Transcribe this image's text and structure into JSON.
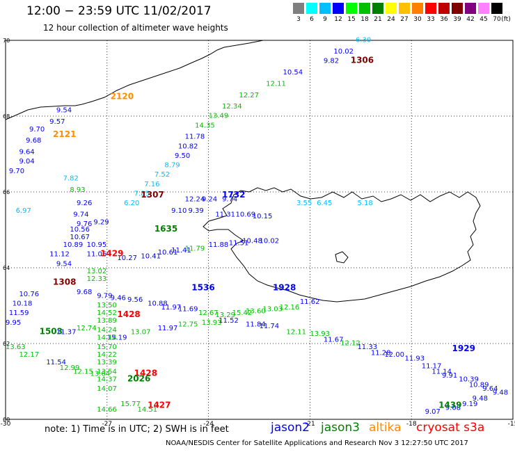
{
  "header": {
    "title": "12:00 − 23:59 UTC 11/02/2017",
    "subtitle": "12 hour collection of altimeter wave heights"
  },
  "colorbar": {
    "colors": [
      "#7f7f7f",
      "#00ffff",
      "#00bfff",
      "#0000ff",
      "#00ff00",
      "#00c000",
      "#008000",
      "#ffff00",
      "#ffc000",
      "#ff8000",
      "#ff0000",
      "#c00000",
      "#800000",
      "#800080",
      "#ff80ff",
      "#000000"
    ],
    "labels": [
      "3",
      "6",
      "9",
      "12",
      "15",
      "18",
      "21",
      "24",
      "27",
      "30",
      "33",
      "36",
      "39",
      "42",
      "45",
      "70"
    ],
    "unit": "(ft)"
  },
  "axes": {
    "x_ticks": [
      "-30",
      "-27",
      "-24",
      "-21",
      "-18",
      "-15"
    ],
    "y_ticks": [
      "70",
      "68",
      "66",
      "64",
      "62",
      "60"
    ],
    "lon_range": [
      -30,
      -15
    ],
    "lat_range": [
      60,
      70
    ]
  },
  "track_labels": [
    {
      "text": "1306",
      "lon": -19.8,
      "lat": 69.4,
      "color": "#800000"
    },
    {
      "text": "2120",
      "lon": -26.9,
      "lat": 68.45,
      "color": "#ff8c00"
    },
    {
      "text": "2121",
      "lon": -28.6,
      "lat": 67.45,
      "color": "#ff8c00"
    },
    {
      "text": "1307",
      "lon": -26.0,
      "lat": 65.85,
      "color": "#800000"
    },
    {
      "text": "1732",
      "lon": -23.6,
      "lat": 65.85,
      "color": "#0000ff"
    },
    {
      "text": "1635",
      "lon": -25.6,
      "lat": 64.95,
      "color": "#008000"
    },
    {
      "text": "1429",
      "lon": -27.2,
      "lat": 64.3,
      "color": "#ff0000"
    },
    {
      "text": "1308",
      "lon": -28.6,
      "lat": 63.55,
      "color": "#800000"
    },
    {
      "text": "1536",
      "lon": -24.5,
      "lat": 63.4,
      "color": "#0000ff"
    },
    {
      "text": "1928",
      "lon": -22.1,
      "lat": 63.4,
      "color": "#0000ff"
    },
    {
      "text": "1428",
      "lon": -26.7,
      "lat": 62.7,
      "color": "#ff0000"
    },
    {
      "text": "1503",
      "lon": -29.0,
      "lat": 62.25,
      "color": "#008000"
    },
    {
      "text": "1929",
      "lon": -16.8,
      "lat": 61.8,
      "color": "#0000ff"
    },
    {
      "text": "1428",
      "lon": -26.2,
      "lat": 61.15,
      "color": "#ff0000"
    },
    {
      "text": "2026",
      "lon": -26.4,
      "lat": 61.0,
      "color": "#008000"
    },
    {
      "text": "1427",
      "lon": -25.8,
      "lat": 60.3,
      "color": "#ff0000"
    },
    {
      "text": "1439",
      "lon": -17.2,
      "lat": 60.3,
      "color": "#008000"
    }
  ],
  "wave_heights": [
    {
      "text": "6.30",
      "lon": -19.65,
      "lat": 69.95,
      "color": "#00bfff"
    },
    {
      "text": "10.02",
      "lon": -20.3,
      "lat": 69.65,
      "color": "#0000ff"
    },
    {
      "text": "9.82",
      "lon": -20.6,
      "lat": 69.4,
      "color": "#0000ff"
    },
    {
      "text": "10.54",
      "lon": -21.8,
      "lat": 69.1,
      "color": "#0000ff"
    },
    {
      "text": "12.11",
      "lon": -22.3,
      "lat": 68.8,
      "color": "#00c000"
    },
    {
      "text": "12.27",
      "lon": -23.1,
      "lat": 68.5,
      "color": "#00c000"
    },
    {
      "text": "12.34",
      "lon": -23.6,
      "lat": 68.2,
      "color": "#00c000"
    },
    {
      "text": "13.49",
      "lon": -24.0,
      "lat": 67.95,
      "color": "#00c000"
    },
    {
      "text": "14.35",
      "lon": -24.4,
      "lat": 67.7,
      "color": "#00c000"
    },
    {
      "text": "11.78",
      "lon": -24.7,
      "lat": 67.4,
      "color": "#0000ff"
    },
    {
      "text": "10.82",
      "lon": -24.9,
      "lat": 67.15,
      "color": "#0000ff"
    },
    {
      "text": "9.50",
      "lon": -25.0,
      "lat": 66.9,
      "color": "#0000ff"
    },
    {
      "text": "8.79",
      "lon": -25.3,
      "lat": 66.65,
      "color": "#00bfff"
    },
    {
      "text": "7.52",
      "lon": -25.6,
      "lat": 66.4,
      "color": "#00bfff"
    },
    {
      "text": "7.16",
      "lon": -25.9,
      "lat": 66.15,
      "color": "#00bfff"
    },
    {
      "text": "7.85",
      "lon": -26.2,
      "lat": 65.9,
      "color": "#00bfff"
    },
    {
      "text": "6.20",
      "lon": -26.5,
      "lat": 65.65,
      "color": "#00bfff"
    },
    {
      "text": "9.54",
      "lon": -28.5,
      "lat": 68.1,
      "color": "#0000ff"
    },
    {
      "text": "9.57",
      "lon": -28.7,
      "lat": 67.8,
      "color": "#0000ff"
    },
    {
      "text": "9.70",
      "lon": -29.3,
      "lat": 67.6,
      "color": "#0000ff"
    },
    {
      "text": "9.68",
      "lon": -29.4,
      "lat": 67.3,
      "color": "#0000ff"
    },
    {
      "text": "9.64",
      "lon": -29.6,
      "lat": 67.0,
      "color": "#0000ff"
    },
    {
      "text": "9.04",
      "lon": -29.6,
      "lat": 66.75,
      "color": "#0000ff"
    },
    {
      "text": "9.70",
      "lon": -29.9,
      "lat": 66.5,
      "color": "#0000ff"
    },
    {
      "text": "7.82",
      "lon": -28.3,
      "lat": 66.3,
      "color": "#00bfff"
    },
    {
      "text": "8.93",
      "lon": -28.1,
      "lat": 66.0,
      "color": "#00c000"
    },
    {
      "text": "9.26",
      "lon": -27.9,
      "lat": 65.65,
      "color": "#0000ff"
    },
    {
      "text": "6.97",
      "lon": -29.7,
      "lat": 65.45,
      "color": "#00bfff"
    },
    {
      "text": "9.74",
      "lon": -28.0,
      "lat": 65.35,
      "color": "#0000ff"
    },
    {
      "text": "9.29",
      "lon": -27.4,
      "lat": 65.15,
      "color": "#0000ff"
    },
    {
      "text": "9.76",
      "lon": -27.9,
      "lat": 65.1,
      "color": "#0000ff"
    },
    {
      "text": "9.10",
      "lon": -25.1,
      "lat": 65.45,
      "color": "#0000ff"
    },
    {
      "text": "9.39",
      "lon": -24.6,
      "lat": 65.45,
      "color": "#0000ff"
    },
    {
      "text": "11.31",
      "lon": -23.8,
      "lat": 65.35,
      "color": "#0000ff"
    },
    {
      "text": "10.69",
      "lon": -23.2,
      "lat": 65.35,
      "color": "#0000ff"
    },
    {
      "text": "10.15",
      "lon": -22.7,
      "lat": 65.3,
      "color": "#0000ff"
    },
    {
      "text": "12.24",
      "lon": -24.7,
      "lat": 65.75,
      "color": "#0000ff"
    },
    {
      "text": "9.24",
      "lon": -24.2,
      "lat": 65.75,
      "color": "#0000ff"
    },
    {
      "text": "9.74",
      "lon": -23.6,
      "lat": 65.75,
      "color": "#0000ff"
    },
    {
      "text": "3.55",
      "lon": -21.4,
      "lat": 65.65,
      "color": "#00bfff"
    },
    {
      "text": "6.45",
      "lon": -20.8,
      "lat": 65.65,
      "color": "#00bfff"
    },
    {
      "text": "5.18",
      "lon": -19.6,
      "lat": 65.65,
      "color": "#00bfff"
    },
    {
      "text": "10.56",
      "lon": -28.1,
      "lat": 64.95,
      "color": "#0000ff"
    },
    {
      "text": "10.67",
      "lon": -28.1,
      "lat": 64.75,
      "color": "#0000ff"
    },
    {
      "text": "10.89",
      "lon": -28.3,
      "lat": 64.55,
      "color": "#0000ff"
    },
    {
      "text": "10.95",
      "lon": -27.6,
      "lat": 64.55,
      "color": "#0000ff"
    },
    {
      "text": "11.12",
      "lon": -28.7,
      "lat": 64.3,
      "color": "#0000ff"
    },
    {
      "text": "11.06",
      "lon": -27.6,
      "lat": 64.3,
      "color": "#0000ff"
    },
    {
      "text": "10.27",
      "lon": -26.7,
      "lat": 64.2,
      "color": "#0000ff"
    },
    {
      "text": "10.41",
      "lon": -26.0,
      "lat": 64.25,
      "color": "#0000ff"
    },
    {
      "text": "10.61",
      "lon": -25.5,
      "lat": 64.35,
      "color": "#0000ff"
    },
    {
      "text": "11.41",
      "lon": -25.1,
      "lat": 64.4,
      "color": "#0000ff"
    },
    {
      "text": "11.79",
      "lon": -24.7,
      "lat": 64.45,
      "color": "#00c000"
    },
    {
      "text": "11.88",
      "lon": -24.0,
      "lat": 64.55,
      "color": "#0000ff"
    },
    {
      "text": "11.51",
      "lon": -23.4,
      "lat": 64.6,
      "color": "#0000ff"
    },
    {
      "text": "10.48",
      "lon": -23.0,
      "lat": 64.65,
      "color": "#0000ff"
    },
    {
      "text": "10.02",
      "lon": -22.5,
      "lat": 64.65,
      "color": "#0000ff"
    },
    {
      "text": "9.54",
      "lon": -28.5,
      "lat": 64.05,
      "color": "#0000ff"
    },
    {
      "text": "13.02",
      "lon": -27.6,
      "lat": 63.85,
      "color": "#00c000"
    },
    {
      "text": "12.33",
      "lon": -27.6,
      "lat": 63.65,
      "color": "#00c000"
    },
    {
      "text": "9.68",
      "lon": -27.9,
      "lat": 63.3,
      "color": "#0000ff"
    },
    {
      "text": "9.79",
      "lon": -27.3,
      "lat": 63.2,
      "color": "#0000ff"
    },
    {
      "text": "9.46",
      "lon": -26.9,
      "lat": 63.15,
      "color": "#0000ff"
    },
    {
      "text": "9.56",
      "lon": -26.4,
      "lat": 63.1,
      "color": "#0000ff"
    },
    {
      "text": "10.88",
      "lon": -25.8,
      "lat": 63.0,
      "color": "#0000ff"
    },
    {
      "text": "11.97",
      "lon": -25.4,
      "lat": 62.9,
      "color": "#0000ff"
    },
    {
      "text": "11.69",
      "lon": -24.9,
      "lat": 62.85,
      "color": "#0000ff"
    },
    {
      "text": "12.67",
      "lon": -24.3,
      "lat": 62.75,
      "color": "#00c000"
    },
    {
      "text": "13.29",
      "lon": -23.8,
      "lat": 62.7,
      "color": "#00c000"
    },
    {
      "text": "15.42",
      "lon": -23.3,
      "lat": 62.75,
      "color": "#00c000"
    },
    {
      "text": "13.60",
      "lon": -22.9,
      "lat": 62.8,
      "color": "#00c000"
    },
    {
      "text": "13.03",
      "lon": -22.4,
      "lat": 62.85,
      "color": "#00c000"
    },
    {
      "text": "12.16",
      "lon": -21.9,
      "lat": 62.9,
      "color": "#00c000"
    },
    {
      "text": "11.62",
      "lon": -21.3,
      "lat": 63.05,
      "color": "#0000ff"
    },
    {
      "text": "10.76",
      "lon": -29.6,
      "lat": 63.25,
      "color": "#0000ff"
    },
    {
      "text": "10.18",
      "lon": -29.8,
      "lat": 63.0,
      "color": "#0000ff"
    },
    {
      "text": "11.59",
      "lon": -29.9,
      "lat": 62.75,
      "color": "#0000ff"
    },
    {
      "text": "9.95",
      "lon": -30.0,
      "lat": 62.5,
      "color": "#0000ff"
    },
    {
      "text": "13.50",
      "lon": -27.3,
      "lat": 62.95,
      "color": "#00c000"
    },
    {
      "text": "14.52",
      "lon": -27.3,
      "lat": 62.75,
      "color": "#00c000"
    },
    {
      "text": "13.89",
      "lon": -27.3,
      "lat": 62.55,
      "color": "#00c000"
    },
    {
      "text": "14.24",
      "lon": -27.3,
      "lat": 62.3,
      "color": "#00c000"
    },
    {
      "text": "15.19",
      "lon": -27.0,
      "lat": 62.1,
      "color": "#0000ff"
    },
    {
      "text": "13.07",
      "lon": -26.3,
      "lat": 62.25,
      "color": "#00c000"
    },
    {
      "text": "11.97",
      "lon": -25.5,
      "lat": 62.35,
      "color": "#0000ff"
    },
    {
      "text": "12.75",
      "lon": -24.9,
      "lat": 62.45,
      "color": "#00c000"
    },
    {
      "text": "13.93",
      "lon": -24.2,
      "lat": 62.5,
      "color": "#00c000"
    },
    {
      "text": "11.52",
      "lon": -23.7,
      "lat": 62.55,
      "color": "#0000ff"
    },
    {
      "text": "11.84",
      "lon": -22.9,
      "lat": 62.45,
      "color": "#0000ff"
    },
    {
      "text": "11.74",
      "lon": -22.5,
      "lat": 62.4,
      "color": "#0000ff"
    },
    {
      "text": "12.11",
      "lon": -21.7,
      "lat": 62.25,
      "color": "#00c000"
    },
    {
      "text": "13.93",
      "lon": -21.0,
      "lat": 62.2,
      "color": "#00c000"
    },
    {
      "text": "11.67",
      "lon": -20.6,
      "lat": 62.05,
      "color": "#0000ff"
    },
    {
      "text": "12.12",
      "lon": -20.1,
      "lat": 61.95,
      "color": "#00c000"
    },
    {
      "text": "11.33",
      "lon": -19.6,
      "lat": 61.85,
      "color": "#0000ff"
    },
    {
      "text": "11.28",
      "lon": -19.2,
      "lat": 61.7,
      "color": "#0000ff"
    },
    {
      "text": "12.00",
      "lon": -18.8,
      "lat": 61.65,
      "color": "#0000ff"
    },
    {
      "text": "11.93",
      "lon": -18.2,
      "lat": 61.55,
      "color": "#0000ff"
    },
    {
      "text": "11.17",
      "lon": -17.7,
      "lat": 61.35,
      "color": "#0000ff"
    },
    {
      "text": "11.14",
      "lon": -17.4,
      "lat": 61.2,
      "color": "#0000ff"
    },
    {
      "text": "9.91",
      "lon": -17.1,
      "lat": 61.1,
      "color": "#0000ff"
    },
    {
      "text": "10.39",
      "lon": -16.6,
      "lat": 61.0,
      "color": "#0000ff"
    },
    {
      "text": "10.89",
      "lon": -16.3,
      "lat": 60.85,
      "color": "#0000ff"
    },
    {
      "text": "9.64",
      "lon": -15.9,
      "lat": 60.75,
      "color": "#0000ff"
    },
    {
      "text": "9.48",
      "lon": -15.6,
      "lat": 60.65,
      "color": "#0000ff"
    },
    {
      "text": "9.48",
      "lon": -16.2,
      "lat": 60.5,
      "color": "#0000ff"
    },
    {
      "text": "9.19",
      "lon": -16.5,
      "lat": 60.35,
      "color": "#0000ff"
    },
    {
      "text": "9.07",
      "lon": -17.6,
      "lat": 60.15,
      "color": "#0000ff"
    },
    {
      "text": "9.08",
      "lon": -17.0,
      "lat": 60.25,
      "color": "#0000ff"
    },
    {
      "text": "11.37",
      "lon": -28.5,
      "lat": 62.25,
      "color": "#0000ff"
    },
    {
      "text": "12.74",
      "lon": -27.9,
      "lat": 62.35,
      "color": "#00c000"
    },
    {
      "text": "14.14",
      "lon": -27.3,
      "lat": 62.1,
      "color": "#00c000"
    },
    {
      "text": "15.70",
      "lon": -27.3,
      "lat": 61.85,
      "color": "#00c000"
    },
    {
      "text": "14.22",
      "lon": -27.3,
      "lat": 61.65,
      "color": "#00c000"
    },
    {
      "text": "13.39",
      "lon": -27.3,
      "lat": 61.45,
      "color": "#00c000"
    },
    {
      "text": "13.54",
      "lon": -27.3,
      "lat": 61.2,
      "color": "#00c000"
    },
    {
      "text": "14.37",
      "lon": -27.3,
      "lat": 61.0,
      "color": "#00c000"
    },
    {
      "text": "14.07",
      "lon": -27.3,
      "lat": 60.75,
      "color": "#00c000"
    },
    {
      "text": "14.66",
      "lon": -27.3,
      "lat": 60.2,
      "color": "#00c000"
    },
    {
      "text": "13.63",
      "lon": -30.0,
      "lat": 61.85,
      "color": "#00c000"
    },
    {
      "text": "12.17",
      "lon": -29.6,
      "lat": 61.65,
      "color": "#00c000"
    },
    {
      "text": "11.54",
      "lon": -28.8,
      "lat": 61.45,
      "color": "#0000ff"
    },
    {
      "text": "12.99",
      "lon": -28.4,
      "lat": 61.3,
      "color": "#00c000"
    },
    {
      "text": "12.15",
      "lon": -28.0,
      "lat": 61.2,
      "color": "#00c000"
    },
    {
      "text": "13.64",
      "lon": -27.5,
      "lat": 61.15,
      "color": "#00c000"
    },
    {
      "text": "15.77",
      "lon": -26.6,
      "lat": 60.35,
      "color": "#00c000"
    },
    {
      "text": "14.51",
      "lon": -26.1,
      "lat": 60.2,
      "color": "#00c000"
    }
  ],
  "notes": {
    "note_text": "note:  1) Time is in UTC;  2) SWH is in feet"
  },
  "legend": [
    {
      "name": "jason2",
      "color": "#0000ff"
    },
    {
      "name": "jason3",
      "color": "#008000"
    },
    {
      "name": "altika",
      "color": "#ff8c00"
    },
    {
      "name": "cryosat s3a",
      "color": "#ff0000"
    }
  ],
  "footer": {
    "credit": "NOAA/NESDIS Center for Satellite Applications and Research   Nov  3 12:27:50 UTC 2017"
  }
}
